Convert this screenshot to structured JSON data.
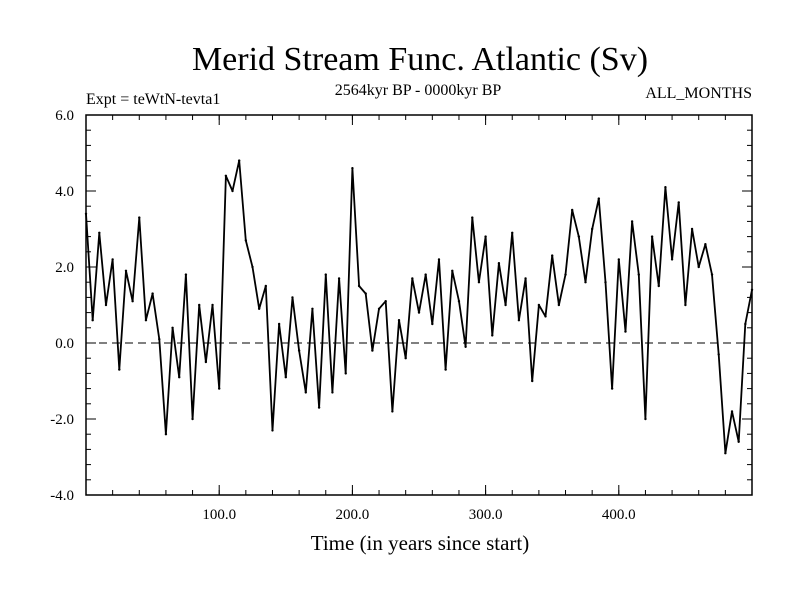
{
  "chart_data": {
    "type": "line",
    "title": "Merid Stream Func. Atlantic (Sv)",
    "subtitle_left": "Expt = teWtN-tevta1",
    "subtitle_center": "2564kyr BP - 0000kyr BP",
    "subtitle_right": "ALL_MONTHS",
    "xlabel": "Time (in years since start)",
    "ylabel": "",
    "xlim": [
      0,
      500
    ],
    "ylim": [
      -4.0,
      6.0
    ],
    "x_ticks": [
      100,
      200,
      300,
      400
    ],
    "x_tick_labels": [
      "100.0",
      "200.0",
      "300.0",
      "400.0"
    ],
    "y_ticks": [
      -4,
      -2,
      0,
      2,
      4,
      6
    ],
    "y_tick_labels": [
      "-4.0",
      "-2.0",
      "0.0",
      "2.0",
      "4.0",
      "6.0"
    ],
    "reference_line": {
      "y": 0.0,
      "style": "dashed"
    },
    "series": [
      {
        "name": "Merid Stream Func. Atlantic",
        "x": [
          0,
          5,
          10,
          15,
          20,
          25,
          30,
          35,
          40,
          45,
          50,
          55,
          60,
          65,
          70,
          75,
          80,
          85,
          90,
          95,
          100,
          105,
          110,
          115,
          120,
          125,
          130,
          135,
          140,
          145,
          150,
          155,
          160,
          165,
          170,
          175,
          180,
          185,
          190,
          195,
          200,
          205,
          210,
          215,
          220,
          225,
          230,
          235,
          240,
          245,
          250,
          255,
          260,
          265,
          270,
          275,
          280,
          285,
          290,
          295,
          300,
          305,
          310,
          315,
          320,
          325,
          330,
          335,
          340,
          345,
          350,
          355,
          360,
          365,
          370,
          375,
          380,
          385,
          390,
          395,
          400,
          405,
          410,
          415,
          420,
          425,
          430,
          435,
          440,
          445,
          450,
          455,
          460,
          465,
          470,
          475,
          480,
          485,
          490,
          495,
          500
        ],
        "values": [
          3.4,
          0.6,
          2.9,
          1.0,
          2.2,
          -0.7,
          1.9,
          1.1,
          3.3,
          0.6,
          1.3,
          0.1,
          -2.4,
          0.4,
          -0.9,
          1.8,
          -2.0,
          1.0,
          -0.5,
          1.0,
          -1.2,
          4.4,
          4.0,
          4.8,
          2.7,
          2.0,
          0.9,
          1.5,
          -2.3,
          0.5,
          -0.9,
          1.2,
          -0.2,
          -1.3,
          0.9,
          -1.7,
          1.8,
          -1.3,
          1.7,
          -0.8,
          4.6,
          1.5,
          1.3,
          -0.2,
          0.9,
          1.1,
          -1.8,
          0.6,
          -0.4,
          1.7,
          0.8,
          1.8,
          0.5,
          2.2,
          -0.7,
          1.9,
          1.1,
          -0.1,
          3.3,
          1.6,
          2.8,
          0.2,
          2.1,
          1.0,
          2.9,
          0.6,
          1.7,
          -1.0,
          1.0,
          0.7,
          2.3,
          1.0,
          1.8,
          3.5,
          2.8,
          1.6,
          3.0,
          3.8,
          1.6,
          -1.2,
          2.2,
          0.3,
          3.2,
          1.8,
          -2.0,
          2.8,
          1.5,
          4.1,
          2.2,
          3.7,
          1.0,
          3.0,
          2.0,
          2.6,
          1.8,
          -0.3,
          -2.9,
          -1.8,
          -2.6,
          0.5,
          1.4
        ]
      }
    ]
  }
}
